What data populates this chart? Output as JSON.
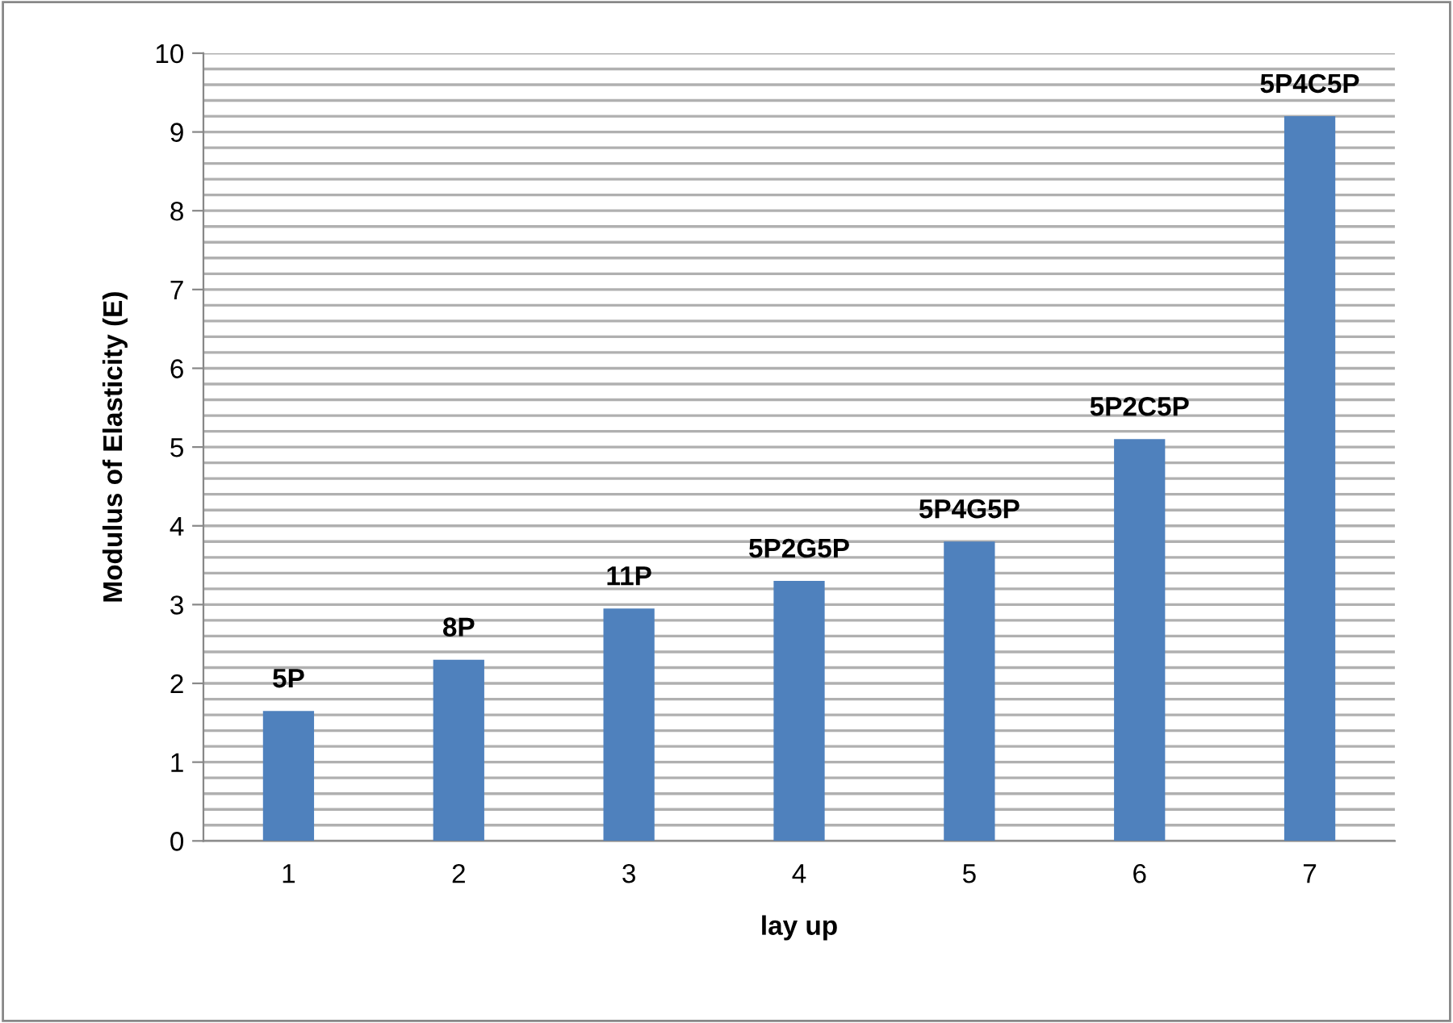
{
  "chart_data": {
    "type": "bar",
    "xlabel": "lay up",
    "ylabel": "Modulus of Elasticity (E)",
    "categories": [
      "1",
      "2",
      "3",
      "4",
      "5",
      "6",
      "7"
    ],
    "values": [
      1.65,
      2.3,
      2.95,
      3.3,
      3.8,
      5.1,
      9.2
    ],
    "color": "#4f81bd",
    "ylim": [
      0,
      10
    ],
    "yticks": [
      0,
      {
        "value": 0.2,
        "label": null
      },
      {
        "value": 0.4,
        "label": null
      },
      {
        "value": 0.6,
        "label": null
      },
      {
        "value": 0.8,
        "label": null
      },
      1,
      {
        "value": 1.2,
        "label": null
      },
      {
        "value": 1.4,
        "label": null
      },
      {
        "value": 1.6,
        "label": null
      },
      {
        "value": 1.8,
        "label": null
      },
      2,
      {
        "value": 2.2,
        "label": null
      },
      {
        "value": 2.4,
        "label": null
      },
      {
        "value": 2.6,
        "label": null
      },
      {
        "value": 2.8,
        "label": null
      },
      3,
      {
        "value": 3.2,
        "label": null
      },
      {
        "value": 3.4,
        "label": null
      },
      {
        "value": 3.6,
        "label": null
      },
      {
        "value": 3.8,
        "label": null
      },
      4,
      {
        "value": 4.2,
        "label": null
      },
      {
        "value": 4.4,
        "label": null
      },
      {
        "value": 4.6,
        "label": null
      },
      {
        "value": 4.8,
        "label": null
      },
      5,
      {
        "value": 5.2,
        "label": null
      },
      {
        "value": 5.4,
        "label": null
      },
      {
        "value": 5.6,
        "label": null
      },
      {
        "value": 5.8,
        "label": null
      },
      6,
      {
        "value": 6.2,
        "label": null
      },
      {
        "value": 6.4,
        "label": null
      },
      {
        "value": 6.6,
        "label": null
      },
      {
        "value": 6.8,
        "label": null
      },
      7,
      {
        "value": 7.2,
        "label": null
      },
      {
        "value": 7.4,
        "label": null
      },
      {
        "value": 7.6,
        "label": null
      },
      {
        "value": 7.8,
        "label": null
      },
      8,
      {
        "value": 8.2,
        "label": null
      },
      {
        "value": 8.4,
        "label": null
      },
      {
        "value": 8.6,
        "label": null
      },
      {
        "value": 8.8,
        "label": null
      },
      9,
      {
        "value": 9.2,
        "label": null
      },
      {
        "value": 9.4,
        "label": null
      },
      {
        "value": 9.6,
        "label": null
      },
      {
        "value": 9.8,
        "label": null
      },
      10
    ],
    "grid": "y",
    "annotations": [
      {
        "text": "5P",
        "x": "1",
        "y": 1.65
      },
      {
        "text": "8P",
        "x": "2",
        "y": 2.3
      },
      {
        "text": "11P",
        "x": "3",
        "y": 2.95
      },
      {
        "text": "5P2G5P",
        "x": "4",
        "y": 3.3
      },
      {
        "text": "5P4G5P",
        "x": "5",
        "y": 3.8
      },
      {
        "text": "5P2C5P",
        "x": "6",
        "y": 5.1
      },
      {
        "text": "5P4C5P",
        "x": "7",
        "y": 9.2
      }
    ]
  }
}
